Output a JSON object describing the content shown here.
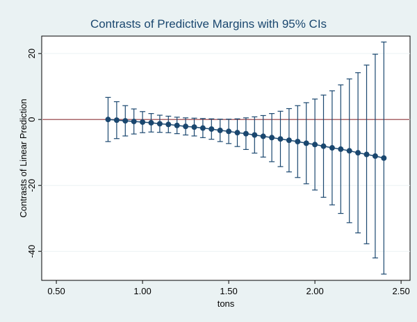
{
  "chart_data": {
    "type": "errorbar_line",
    "title": "Contrasts of Predictive Margins with 95% CIs",
    "x_label": "tons",
    "y_label": "Contrasts of Linear Prediction",
    "x": [
      0.8,
      0.85,
      0.9,
      0.95,
      1.0,
      1.05,
      1.1,
      1.15,
      1.2,
      1.25,
      1.3,
      1.35,
      1.4,
      1.45,
      1.5,
      1.55,
      1.6,
      1.65,
      1.7,
      1.75,
      1.8,
      1.85,
      1.9,
      1.95,
      2.0,
      2.05,
      2.1,
      2.15,
      2.2,
      2.25,
      2.3,
      2.35,
      2.4
    ],
    "values": [
      0.0,
      -0.2,
      -0.4,
      -0.6,
      -0.8,
      -1.0,
      -1.3,
      -1.5,
      -1.8,
      -2.1,
      -2.3,
      -2.6,
      -2.9,
      -3.3,
      -3.6,
      -4.0,
      -4.3,
      -4.7,
      -5.1,
      -5.5,
      -5.9,
      -6.3,
      -6.7,
      -7.2,
      -7.6,
      -8.1,
      -8.6,
      -9.0,
      -9.5,
      -10.1,
      -10.6,
      -11.1,
      -11.7
    ],
    "ci_lower": [
      -6.7,
      -5.8,
      -5.0,
      -4.4,
      -4.0,
      -3.8,
      -3.9,
      -4.0,
      -4.3,
      -4.7,
      -5.0,
      -5.5,
      -6.0,
      -6.7,
      -7.3,
      -8.2,
      -9.1,
      -10.2,
      -11.4,
      -12.8,
      -14.3,
      -15.9,
      -17.6,
      -19.5,
      -21.4,
      -23.6,
      -25.9,
      -28.5,
      -31.3,
      -34.4,
      -37.7,
      -42.0,
      -46.9
    ],
    "ci_upper": [
      6.7,
      5.4,
      4.2,
      3.2,
      2.4,
      1.8,
      1.3,
      1.0,
      0.7,
      0.5,
      0.4,
      0.3,
      0.2,
      0.1,
      0.1,
      0.2,
      0.5,
      0.8,
      1.2,
      1.8,
      2.5,
      3.3,
      4.2,
      5.1,
      6.2,
      7.4,
      8.7,
      10.5,
      12.3,
      14.2,
      16.5,
      19.8,
      23.5
    ],
    "color": "#1a476f",
    "refline": 0,
    "refline_color": "#90353b",
    "xlim": [
      0.415,
      2.552
    ],
    "xticks": [
      {
        "value": 0.5,
        "label": "0.50"
      },
      {
        "value": 1.0,
        "label": "1.00"
      },
      {
        "value": 1.5,
        "label": "1.50"
      },
      {
        "value": 2.0,
        "label": "2.00"
      },
      {
        "value": 2.5,
        "label": "2.50"
      }
    ],
    "ylim": [
      -48.8,
      25.3
    ],
    "yticks": [
      -40,
      -20,
      0,
      20
    ],
    "grid": true
  }
}
